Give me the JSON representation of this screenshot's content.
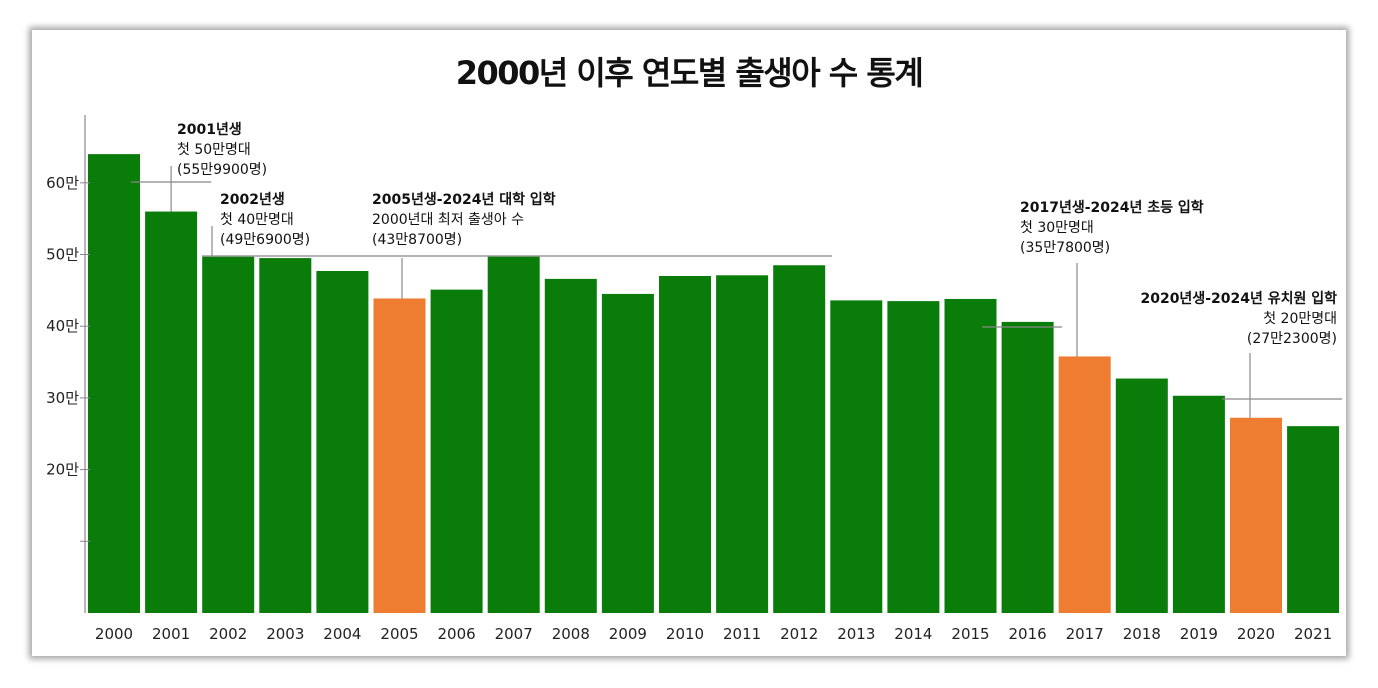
{
  "chart_data": {
    "type": "bar",
    "title": "2000년 이후 연도별 출생아 수 통계",
    "categories": [
      "2000",
      "2001",
      "2002",
      "2003",
      "2004",
      "2005",
      "2006",
      "2007",
      "2008",
      "2009",
      "2010",
      "2011",
      "2012",
      "2013",
      "2014",
      "2015",
      "2016",
      "2017",
      "2018",
      "2019",
      "2020",
      "2021"
    ],
    "values": [
      64.0,
      55.99,
      49.69,
      49.5,
      47.7,
      43.87,
      45.1,
      49.7,
      46.6,
      44.5,
      47.0,
      47.1,
      48.5,
      43.6,
      43.5,
      43.8,
      40.6,
      35.78,
      32.7,
      30.3,
      27.23,
      26.06
    ],
    "highlight_years": [
      "2005",
      "2017",
      "2020"
    ],
    "ylim": [
      0,
      70
    ],
    "yticks": [
      20,
      30,
      40,
      50,
      60
    ],
    "ytick_labels": [
      "20만",
      "30만",
      "40만",
      "50만",
      "60만"
    ],
    "xlabel": "",
    "ylabel": "",
    "grid": false,
    "colors": {
      "bar": "#097c0a",
      "highlight": "#ee7d31",
      "axis": "#888888",
      "leader": "#888888"
    },
    "annotations": [
      {
        "year": "2001",
        "lines": [
          "2001년생",
          "첫 50만명대",
          "(55만9900명)"
        ]
      },
      {
        "year": "2002",
        "lines": [
          "2002년생",
          "첫 40만명대",
          "(49만6900명)"
        ]
      },
      {
        "year": "2005",
        "lines": [
          "2005년생-2024년 대학 입학",
          "2000년대 최저 출생아 수",
          "(43만8700명)"
        ]
      },
      {
        "year": "2017",
        "lines": [
          "2017년생-2024년 초등 입학",
          "첫 30만명대",
          "(35만7800명)"
        ]
      },
      {
        "year": "2020",
        "lines": [
          "2020년생-2024년 유치원 입학",
          "첫 20만명대",
          "(27만2300명)"
        ]
      }
    ]
  }
}
